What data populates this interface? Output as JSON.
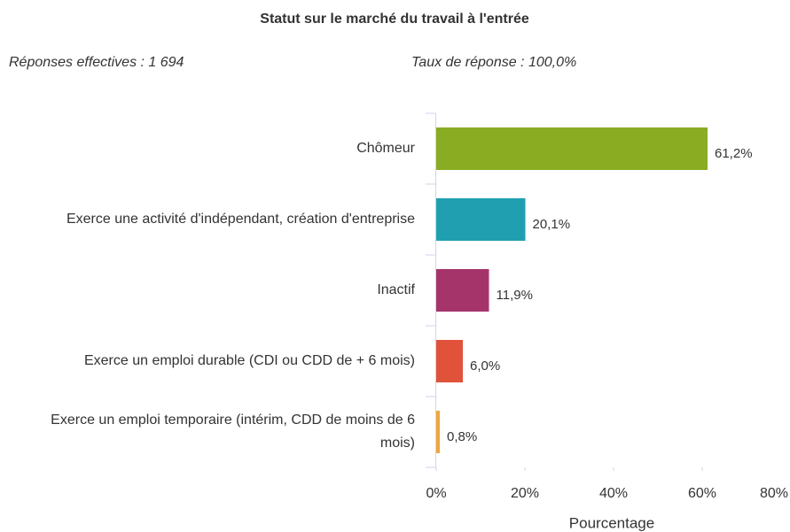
{
  "chart_data": {
    "type": "barh",
    "title": "Statut sur le marché du travail à l'entrée",
    "subtitle_left": "Réponses effectives : 1 694",
    "subtitle_right": "Taux de réponse : 100,0%",
    "categories": [
      "Chômeur",
      "Exerce une activité d'indépendant, création d'entreprise",
      "Inactif",
      "Exerce un emploi durable (CDI ou CDD de + 6 mois)",
      "Exerce un emploi temporaire (intérim, CDD de moins de 6 mois)"
    ],
    "values": [
      61.2,
      20.1,
      11.9,
      6.0,
      0.8
    ],
    "value_labels": [
      "61,2%",
      "20,1%",
      "11,9%",
      "6,0%",
      "0,8%"
    ],
    "colors": [
      "#8aac23",
      "#1f9fb0",
      "#a5346a",
      "#e0533a",
      "#f0a63a"
    ],
    "xlim": [
      0,
      80
    ],
    "xticks": [
      {
        "value": 0,
        "label": "0%"
      },
      {
        "value": 20,
        "label": "20%"
      },
      {
        "value": 40,
        "label": "40%"
      },
      {
        "value": 60,
        "label": "60%"
      },
      {
        "value": 80,
        "label": "80%"
      }
    ],
    "xlabel": "Pourcentage"
  }
}
